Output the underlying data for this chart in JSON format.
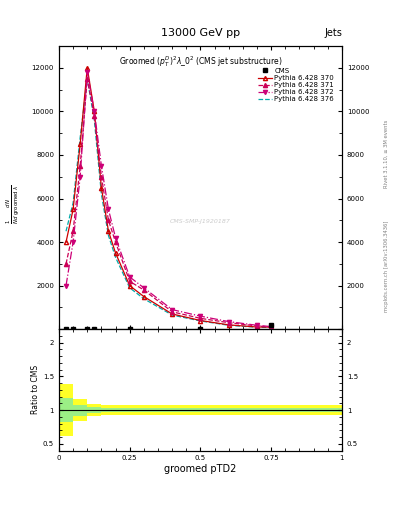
{
  "title_main": "13000 GeV pp",
  "title_right": "Jets",
  "plot_title": "Groomed $(p_T^D)^2\\lambda\\_0^2$ (CMS jet substructure)",
  "xlabel": "groomed pTD2",
  "ylabel_ratio": "Ratio to CMS",
  "right_label": "Rivet 3.1.10, ≥ 3M events",
  "arxiv_label": "mcplots.cern.ch [arXiv:1306.3436]",
  "watermark": "CMS-SMP-J1920187",
  "py370_x": [
    0.025,
    0.05,
    0.075,
    0.1,
    0.125,
    0.15,
    0.175,
    0.2,
    0.25,
    0.3,
    0.4,
    0.5,
    0.6,
    0.7,
    0.75
  ],
  "py370_y": [
    4000,
    5500,
    8500,
    12000,
    10000,
    6500,
    4500,
    3500,
    2000,
    1500,
    700,
    400,
    200,
    100,
    100
  ],
  "py370_color": "#cc0000",
  "py371_x": [
    0.025,
    0.05,
    0.075,
    0.1,
    0.125,
    0.15,
    0.175,
    0.2,
    0.25,
    0.3,
    0.4,
    0.5,
    0.6,
    0.7,
    0.75
  ],
  "py371_y": [
    3000,
    4500,
    7500,
    11500,
    9800,
    7000,
    5000,
    4000,
    2200,
    1800,
    800,
    500,
    300,
    150,
    100
  ],
  "py371_color": "#cc0055",
  "py372_x": [
    0.025,
    0.05,
    0.075,
    0.1,
    0.125,
    0.15,
    0.175,
    0.2,
    0.25,
    0.3,
    0.4,
    0.5,
    0.6,
    0.7,
    0.75
  ],
  "py372_y": [
    2000,
    4000,
    7000,
    11800,
    10000,
    7500,
    5500,
    4200,
    2400,
    1900,
    900,
    600,
    350,
    180,
    120
  ],
  "py372_color": "#cc0077",
  "py376_x": [
    0.025,
    0.05,
    0.075,
    0.1,
    0.125,
    0.15,
    0.175,
    0.2,
    0.25,
    0.3,
    0.4,
    0.5,
    0.6,
    0.7,
    0.75
  ],
  "py376_y": [
    4500,
    5800,
    8800,
    11500,
    9600,
    6200,
    4300,
    3300,
    1900,
    1400,
    650,
    380,
    180,
    90,
    80
  ],
  "py376_color": "#00aaaa",
  "cms_x": [
    0.025,
    0.05,
    0.1,
    0.125,
    0.25,
    0.5,
    0.75
  ],
  "cms_y": [
    0,
    0,
    0,
    0,
    0,
    0,
    200
  ],
  "ylim_main": [
    0,
    13000
  ],
  "ylim_ratio": [
    0.4,
    2.2
  ],
  "xlim": [
    0.0,
    1.0
  ],
  "yticks_main": [
    0,
    2000,
    4000,
    6000,
    8000,
    10000,
    12000
  ],
  "ratio_bins_lo": [
    0.0,
    0.05,
    0.1,
    0.15,
    0.2,
    0.3,
    1.0
  ],
  "ratio_bins_hi": [
    0.05,
    0.1,
    0.15,
    0.2,
    0.3,
    1.0,
    1.0
  ],
  "ratio_yellow_lo": [
    0.62,
    0.84,
    0.91,
    0.93,
    0.93,
    0.93,
    0.93
  ],
  "ratio_yellow_hi": [
    1.38,
    1.16,
    1.09,
    1.07,
    1.07,
    1.07,
    1.07
  ],
  "ratio_green_lo": [
    0.82,
    0.92,
    0.96,
    0.97,
    0.97,
    0.97,
    0.97
  ],
  "ratio_green_hi": [
    1.18,
    1.08,
    1.04,
    1.03,
    1.03,
    1.03,
    1.03
  ]
}
